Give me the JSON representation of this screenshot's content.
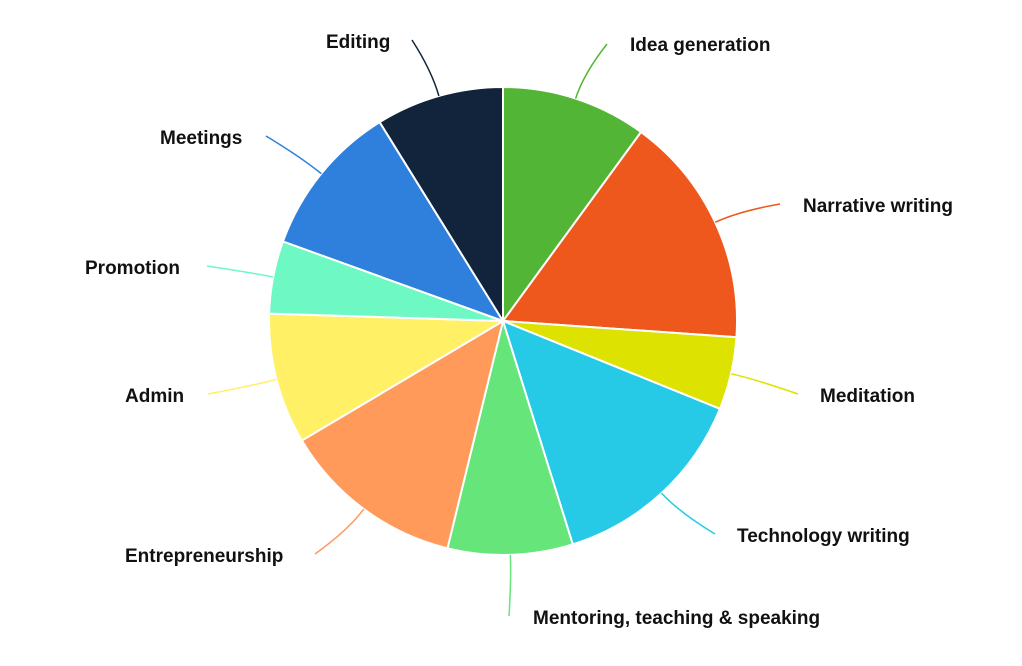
{
  "chart_data": {
    "type": "pie",
    "title": "",
    "legend": "none",
    "slices": [
      {
        "label": "Idea generation",
        "value": 10.0,
        "color": "#53b535"
      },
      {
        "label": "Narrative writing",
        "value": 16.0,
        "color": "#ee581c"
      },
      {
        "label": "Meditation",
        "value": 5.0,
        "color": "#dde200"
      },
      {
        "label": "Technology writing",
        "value": 14.0,
        "color": "#26c9e6"
      },
      {
        "label": "Mentoring, teaching & speaking",
        "value": 8.6,
        "color": "#66e57a"
      },
      {
        "label": "Entrepreneurship",
        "value": 12.6,
        "color": "#ff9a5b"
      },
      {
        "label": "Admin",
        "value": 9.0,
        "color": "#fff065"
      },
      {
        "label": "Promotion",
        "value": 5.0,
        "color": "#6ef9c4"
      },
      {
        "label": "Meetings",
        "value": 10.6,
        "color": "#2f80dc"
      },
      {
        "label": "Editing",
        "value": 8.8,
        "color": "#12243b"
      }
    ]
  }
}
